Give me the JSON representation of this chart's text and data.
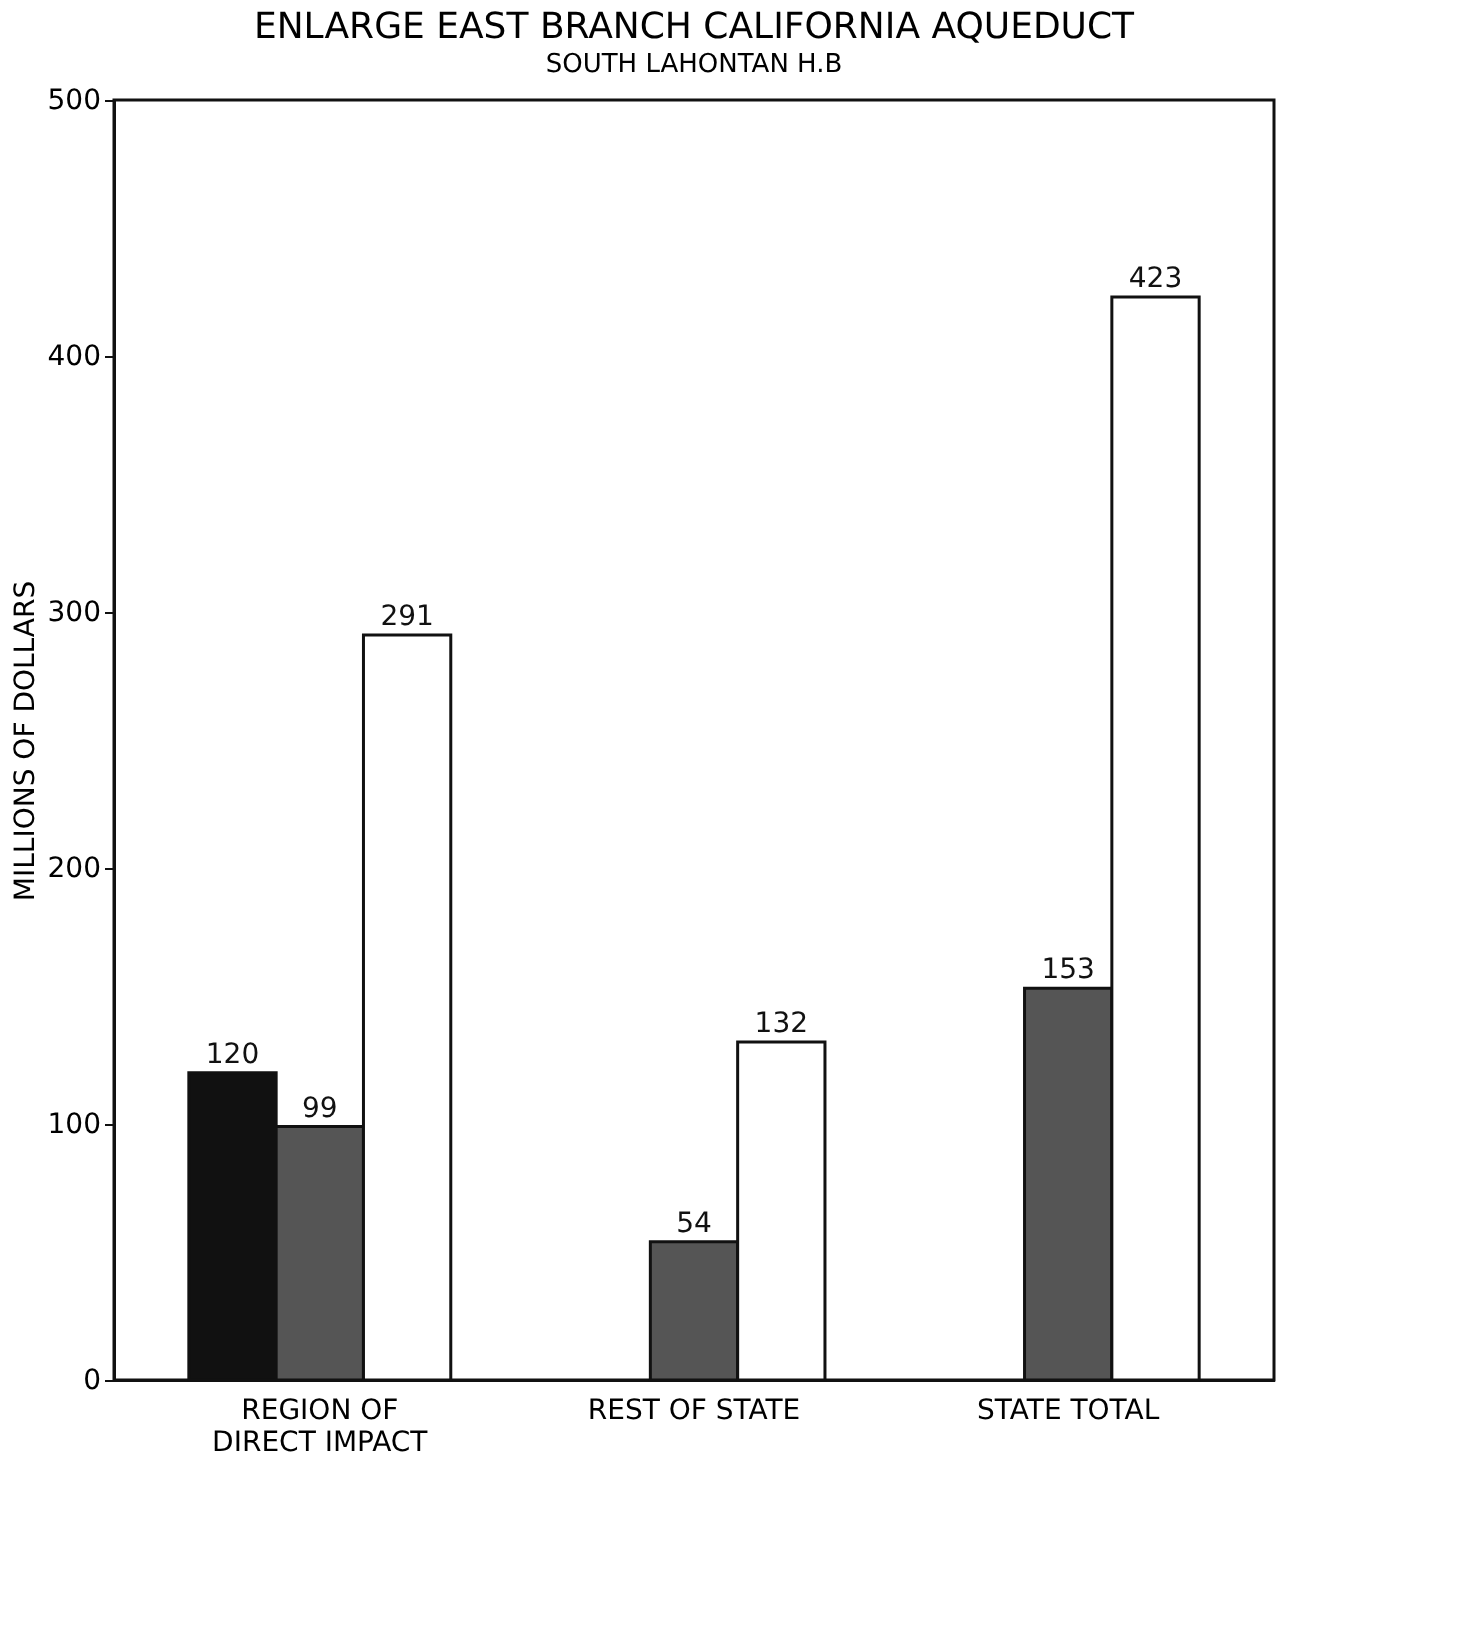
{
  "chart_data": {
    "type": "bar",
    "title": "ENLARGE EAST BRANCH CALIFORNIA AQUEDUCT",
    "subtitle": "SOUTH LAHONTAN H.B",
    "ylabel": "MILLIONS OF DOLLARS",
    "categories": [
      "REGION OF\nDIRECT IMPACT",
      "REST OF STATE",
      "STATE TOTAL"
    ],
    "series": [
      {
        "color": "#111111",
        "values": [
          120,
          null,
          null
        ]
      },
      {
        "color": "#555555",
        "values": [
          99,
          54,
          153
        ]
      },
      {
        "color": "#ffffff",
        "values": [
          291,
          132,
          423
        ]
      }
    ],
    "ylim": [
      0,
      500
    ],
    "yticks": [
      0,
      100,
      200,
      300,
      400,
      500
    ],
    "grid": false,
    "legend": false,
    "data_labels": true
  }
}
